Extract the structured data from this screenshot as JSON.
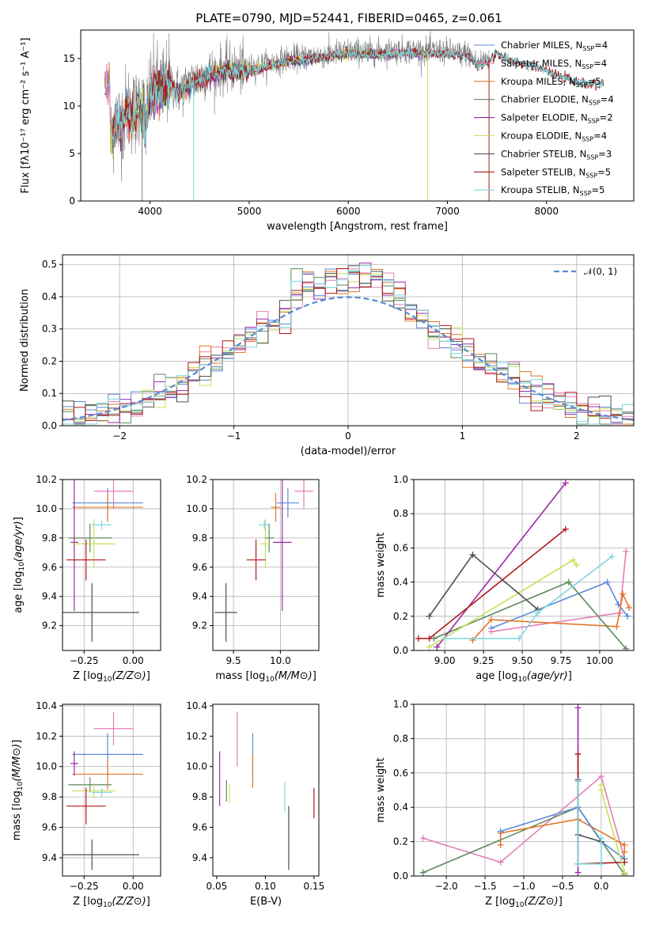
{
  "colors": {
    "Chabrier MILES": "#5b8bd6",
    "Salpeter MILES": "#e47eb8",
    "Kroupa MILES": "#e0782a",
    "Chabrier ELODIE": "#5c8a5c",
    "Salpeter ELODIE": "#9a2aa6",
    "Kroupa ELODIE": "#c8e05a",
    "Chabrier STELIB": "#505050",
    "Salpeter STELIB": "#b01818",
    "Kroupa STELIB": "#7ed6de"
  },
  "chart_data": [
    {
      "id": "spectrum",
      "type": "line",
      "title": "PLATE=0790, MJD=52441, FIBERID=0465, z=0.061",
      "xlabel": "wavelength [Angstrom, rest frame]",
      "ylabel": "Flux [fλ10⁻¹⁷ erg cm⁻² s⁻¹ A⁻¹]",
      "xlim": [
        3300,
        8880
      ],
      "ylim": [
        0,
        18
      ],
      "xticks": [
        4000,
        5000,
        6000,
        7000,
        8000
      ],
      "yticks": [
        0,
        5,
        10,
        15
      ],
      "grid": false,
      "legend_position": "right",
      "data_series": {
        "name": "data",
        "color": "#808080"
      },
      "model_envelope": {
        "x": [
          3600,
          3650,
          3700,
          3750,
          3800,
          3850,
          3900,
          3950,
          4000,
          4100,
          4200,
          4300,
          4400,
          4500,
          4600,
          4700,
          4800,
          4900,
          5000,
          5200,
          5400,
          5600,
          5800,
          6000,
          6200,
          6400,
          6600,
          6800,
          7000,
          7100,
          7200,
          7300,
          7400,
          7500,
          7600,
          7700,
          7800,
          7900,
          8000,
          8100,
          8200,
          8300,
          8400
        ],
        "y": [
          6.0,
          9.0,
          8.0,
          9.5,
          10.0,
          9.0,
          11.0,
          8.0,
          11.5,
          12.0,
          12.5,
          11.5,
          12.5,
          13.0,
          13.5,
          13.8,
          14.0,
          13.8,
          14.0,
          14.5,
          15.0,
          15.2,
          15.5,
          15.8,
          15.7,
          15.8,
          15.9,
          15.8,
          15.8,
          15.5,
          15.6,
          14.5,
          15.0,
          15.8,
          15.2,
          15.0,
          14.6,
          14.4,
          14.0,
          13.6,
          13.2,
          12.8,
          12.6
        ]
      },
      "series": [
        {
          "name": "Chabrier MILES",
          "label": "Chabrier MILES, N",
          "sub": "SSP",
          "count": "=4"
        },
        {
          "name": "Salpeter MILES",
          "label": "Salpeter MILES, N",
          "sub": "SSP",
          "count": "=4"
        },
        {
          "name": "Kroupa MILES",
          "label": "Kroupa MILES, N",
          "sub": "SSP",
          "count": "=5"
        },
        {
          "name": "Chabrier ELODIE",
          "label": "Chabrier ELODIE, N",
          "sub": "SSP",
          "count": "=4"
        },
        {
          "name": "Salpeter ELODIE",
          "label": "Salpeter ELODIE, N",
          "sub": "SSP",
          "count": "=2"
        },
        {
          "name": "Kroupa ELODIE",
          "label": "Kroupa ELODIE, N",
          "sub": "SSP",
          "count": "=4"
        },
        {
          "name": "Chabrier STELIB",
          "label": "Chabrier STELIB, N",
          "sub": "SSP",
          "count": "=3"
        },
        {
          "name": "Salpeter STELIB",
          "label": "Salpeter STELIB, N",
          "sub": "SSP",
          "count": "=5"
        },
        {
          "name": "Kroupa STELIB",
          "label": "Kroupa STELIB, N",
          "sub": "SSP",
          "count": "=5"
        }
      ]
    },
    {
      "id": "residuals",
      "type": "histogram",
      "xlabel": "(data-model)/error",
      "ylabel": "Normed distribution",
      "xlim": [
        -2.5,
        2.5
      ],
      "ylim": [
        0,
        0.53
      ],
      "xticks": [
        -2,
        -1,
        0,
        1,
        2
      ],
      "yticks": [
        0.0,
        0.1,
        0.2,
        0.3,
        0.4,
        0.5
      ],
      "grid": true,
      "legend_position": "top-right",
      "reference_curve": {
        "name": "𝒩(0, 1)",
        "color": "#5b8bd6"
      },
      "bin_width": 0.1
    },
    {
      "id": "age-vs-Z",
      "type": "errorbar",
      "xlabel": "Z [log10(Z/Z⊙)]",
      "ylabel": "age  [log10(age/yr)]",
      "xlim": [
        -0.36,
        0.14
      ],
      "ylim": [
        9.03,
        10.2
      ],
      "xticks": [
        -0.25,
        0.0
      ],
      "yticks": [
        9.2,
        9.4,
        9.6,
        9.8,
        10.0,
        10.2
      ],
      "grid": true,
      "points": [
        {
          "name": "Chabrier MILES",
          "x": -0.13,
          "xerr": 0.18,
          "y": 10.04,
          "yerr": 0.1
        },
        {
          "name": "Salpeter MILES",
          "x": -0.1,
          "xerr": 0.1,
          "y": 10.12,
          "yerr": 0.12
        },
        {
          "name": "Kroupa MILES",
          "x": -0.13,
          "xerr": 0.18,
          "y": 10.01,
          "yerr": 0.1
        },
        {
          "name": "Chabrier ELODIE",
          "x": -0.22,
          "xerr": 0.11,
          "y": 9.8,
          "yerr": 0.1
        },
        {
          "name": "Salpeter ELODIE",
          "x": -0.3,
          "xerr": 0.02,
          "y": 9.77,
          "yerr": 0.47
        },
        {
          "name": "Kroupa ELODIE",
          "x": -0.2,
          "xerr": 0.11,
          "y": 9.76,
          "yerr": 0.17
        },
        {
          "name": "Chabrier STELIB",
          "x": -0.21,
          "xerr": 0.24,
          "y": 9.29,
          "yerr": 0.2
        },
        {
          "name": "Salpeter STELIB",
          "x": -0.24,
          "xerr": 0.1,
          "y": 9.65,
          "yerr": 0.14
        },
        {
          "name": "Kroupa STELIB",
          "x": -0.16,
          "xerr": 0.05,
          "y": 9.89,
          "yerr": 0.03
        }
      ]
    },
    {
      "id": "age-vs-mass",
      "type": "errorbar",
      "xlabel": "mass [log10(M/M⊙)]",
      "ylabel": "",
      "xlim": [
        9.28,
        10.41
      ],
      "ylim": [
        9.03,
        10.2
      ],
      "xticks": [
        9.5,
        10.0
      ],
      "yticks": [
        9.2,
        9.4,
        9.6,
        9.8,
        10.0,
        10.2
      ],
      "grid": true,
      "points": [
        {
          "name": "Chabrier MILES",
          "x": 10.08,
          "xerr": 0.12,
          "y": 10.04,
          "yerr": 0.1
        },
        {
          "name": "Salpeter MILES",
          "x": 10.25,
          "xerr": 0.1,
          "y": 10.12,
          "yerr": 0.12
        },
        {
          "name": "Kroupa MILES",
          "x": 9.95,
          "xerr": 0.05,
          "y": 10.01,
          "yerr": 0.1
        },
        {
          "name": "Chabrier ELODIE",
          "x": 9.88,
          "xerr": 0.05,
          "y": 9.8,
          "yerr": 0.1
        },
        {
          "name": "Salpeter ELODIE",
          "x": 10.02,
          "xerr": 0.1,
          "y": 9.77,
          "yerr": 0.47
        },
        {
          "name": "Kroupa ELODIE",
          "x": 9.84,
          "xerr": 0.05,
          "y": 9.76,
          "yerr": 0.17
        },
        {
          "name": "Chabrier STELIB",
          "x": 9.42,
          "xerr": 0.12,
          "y": 9.29,
          "yerr": 0.2
        },
        {
          "name": "Salpeter STELIB",
          "x": 9.74,
          "xerr": 0.1,
          "y": 9.65,
          "yerr": 0.14
        },
        {
          "name": "Kroupa STELIB",
          "x": 9.83,
          "xerr": 0.06,
          "y": 9.89,
          "yerr": 0.03
        }
      ]
    },
    {
      "id": "weight-vs-age",
      "type": "line",
      "xlabel": "age  [log10(age/yr)]",
      "ylabel": "mass weight",
      "xlim": [
        8.8,
        10.22
      ],
      "ylim": [
        0,
        1.0
      ],
      "xticks": [
        9.0,
        9.25,
        9.5,
        9.75,
        10.0
      ],
      "yticks": [
        0.0,
        0.2,
        0.4,
        0.6,
        0.8,
        1.0
      ],
      "grid": true,
      "series": [
        {
          "name": "Chabrier MILES",
          "x": [
            9.3,
            10.05,
            10.12,
            10.18
          ],
          "y": [
            0.13,
            0.4,
            0.27,
            0.2
          ]
        },
        {
          "name": "Salpeter MILES",
          "x": [
            9.3,
            10.13,
            10.17
          ],
          "y": [
            0.11,
            0.22,
            0.58
          ]
        },
        {
          "name": "Kroupa MILES",
          "x": [
            9.18,
            9.3,
            10.11,
            10.15,
            10.19
          ],
          "y": [
            0.06,
            0.18,
            0.14,
            0.33,
            0.25
          ]
        },
        {
          "name": "Chabrier ELODIE",
          "x": [
            8.93,
            9.8,
            10.17
          ],
          "y": [
            0.07,
            0.4,
            0.01
          ]
        },
        {
          "name": "Salpeter ELODIE",
          "x": [
            8.95,
            9.78
          ],
          "y": [
            0.02,
            0.98
          ]
        },
        {
          "name": "Kroupa ELODIE",
          "x": [
            8.9,
            9.83,
            9.85
          ],
          "y": [
            0.02,
            0.53,
            0.5
          ]
        },
        {
          "name": "Chabrier STELIB",
          "x": [
            8.9,
            9.18,
            9.6
          ],
          "y": [
            0.2,
            0.56,
            0.24
          ]
        },
        {
          "name": "Salpeter STELIB",
          "x": [
            8.83,
            8.9,
            9.78
          ],
          "y": [
            0.07,
            0.07,
            0.71
          ]
        },
        {
          "name": "Kroupa STELIB",
          "x": [
            9.0,
            9.48,
            9.6,
            10.08
          ],
          "y": [
            0.07,
            0.07,
            0.22,
            0.55
          ]
        }
      ]
    },
    {
      "id": "mass-vs-Z",
      "type": "errorbar",
      "xlabel": "Z [log10(Z/Z⊙)]",
      "ylabel": "mass [log10(M/M⊙)]",
      "xlim": [
        -0.36,
        0.14
      ],
      "ylim": [
        9.28,
        10.41
      ],
      "xticks": [
        -0.25,
        0.0
      ],
      "yticks": [
        9.4,
        9.6,
        9.8,
        10.0,
        10.2,
        10.4
      ],
      "grid": true,
      "points": [
        {
          "name": "Chabrier MILES",
          "x": -0.13,
          "xerr": 0.18,
          "y": 10.08,
          "yerr": 0.14
        },
        {
          "name": "Salpeter MILES",
          "x": -0.1,
          "xerr": 0.1,
          "y": 10.25,
          "yerr": 0.11
        },
        {
          "name": "Kroupa MILES",
          "x": -0.13,
          "xerr": 0.18,
          "y": 9.95,
          "yerr": 0.1
        },
        {
          "name": "Chabrier ELODIE",
          "x": -0.22,
          "xerr": 0.11,
          "y": 9.88,
          "yerr": 0.05
        },
        {
          "name": "Salpeter ELODIE",
          "x": -0.3,
          "xerr": 0.02,
          "y": 10.02,
          "yerr": 0.08
        },
        {
          "name": "Kroupa ELODIE",
          "x": -0.2,
          "xerr": 0.11,
          "y": 9.84,
          "yerr": 0.05
        },
        {
          "name": "Chabrier STELIB",
          "x": -0.21,
          "xerr": 0.24,
          "y": 9.42,
          "yerr": 0.1
        },
        {
          "name": "Salpeter STELIB",
          "x": -0.24,
          "xerr": 0.1,
          "y": 9.74,
          "yerr": 0.12
        },
        {
          "name": "Kroupa STELIB",
          "x": -0.16,
          "xerr": 0.05,
          "y": 9.83,
          "yerr": 0.03
        }
      ]
    },
    {
      "id": "mass-vs-EBV",
      "type": "errorbar",
      "xlabel": "E(B-V)",
      "ylabel": "",
      "xlim": [
        0.046,
        0.155
      ],
      "ylim": [
        9.28,
        10.41
      ],
      "xticks": [
        0.05,
        0.1,
        0.15
      ],
      "yticks": [
        9.4,
        9.6,
        9.8,
        10.0,
        10.2,
        10.4
      ],
      "grid": false,
      "points": [
        {
          "name": "Chabrier MILES",
          "x": 0.087,
          "xerr": 0,
          "y": 10.08,
          "yerr": 0.14
        },
        {
          "name": "Salpeter MILES",
          "x": 0.071,
          "xerr": 0,
          "y": 10.18,
          "yerr": 0.18
        },
        {
          "name": "Kroupa MILES",
          "x": 0.087,
          "xerr": 0,
          "y": 9.97,
          "yerr": 0.11
        },
        {
          "name": "Chabrier ELODIE",
          "x": 0.06,
          "xerr": 0,
          "y": 9.84,
          "yerr": 0.07
        },
        {
          "name": "Salpeter ELODIE",
          "x": 0.053,
          "xerr": 0,
          "y": 9.92,
          "yerr": 0.18
        },
        {
          "name": "Kroupa ELODIE",
          "x": 0.063,
          "xerr": 0,
          "y": 9.82,
          "yerr": 0.06
        },
        {
          "name": "Chabrier STELIB",
          "x": 0.124,
          "xerr": 0,
          "y": 9.53,
          "yerr": 0.21
        },
        {
          "name": "Salpeter STELIB",
          "x": 0.15,
          "xerr": 0,
          "y": 9.76,
          "yerr": 0.1
        },
        {
          "name": "Kroupa STELIB",
          "x": 0.12,
          "xerr": 0,
          "y": 9.8,
          "yerr": 0.1
        }
      ]
    },
    {
      "id": "weight-vs-Z",
      "type": "line",
      "xlabel": "Z [log10(Z/Z⊙)]",
      "ylabel": "mass weight",
      "xlim": [
        -2.42,
        0.42
      ],
      "ylim": [
        0,
        1.0
      ],
      "xticks": [
        -2.0,
        -1.5,
        -1.0,
        -0.5,
        0.0
      ],
      "yticks": [
        0.0,
        0.2,
        0.4,
        0.6,
        0.8,
        1.0
      ],
      "grid": true,
      "series": [
        {
          "name": "Salpeter MILES",
          "x": [
            -2.3,
            -1.3,
            0.0,
            0.3
          ],
          "y": [
            0.22,
            0.08,
            0.58,
            0.1
          ]
        },
        {
          "name": "Chabrier ELODIE",
          "x": [
            -2.3,
            -0.3,
            0.3
          ],
          "y": [
            0.02,
            0.4,
            0.01
          ]
        },
        {
          "name": "Kroupa MILES",
          "x": [
            -1.3,
            -1.3,
            -0.3,
            0.3,
            0.3
          ],
          "y": [
            0.18,
            0.25,
            0.33,
            0.18,
            0.14
          ]
        },
        {
          "name": "Chabrier MILES",
          "x": [
            -1.3,
            -0.3,
            0.0,
            0.3
          ],
          "y": [
            0.26,
            0.4,
            0.2,
            0.1
          ]
        },
        {
          "name": "Salpeter ELODIE",
          "x": [
            -0.3,
            -0.3
          ],
          "y": [
            0.98,
            0.02
          ]
        },
        {
          "name": "Salpeter STELIB",
          "x": [
            -0.3,
            -0.3,
            0.3
          ],
          "y": [
            0.71,
            0.07,
            0.08
          ]
        },
        {
          "name": "Chabrier STELIB",
          "x": [
            -0.3,
            -0.3,
            0.0
          ],
          "y": [
            0.56,
            0.24,
            0.2
          ]
        },
        {
          "name": "Kroupa ELODIE",
          "x": [
            0.0,
            0.0,
            0.3
          ],
          "y": [
            0.53,
            0.5,
            0.02
          ]
        },
        {
          "name": "Kroupa STELIB",
          "x": [
            -0.3,
            -0.3,
            0.0,
            0.0
          ],
          "y": [
            0.55,
            0.07,
            0.07,
            0.22
          ]
        }
      ]
    }
  ]
}
